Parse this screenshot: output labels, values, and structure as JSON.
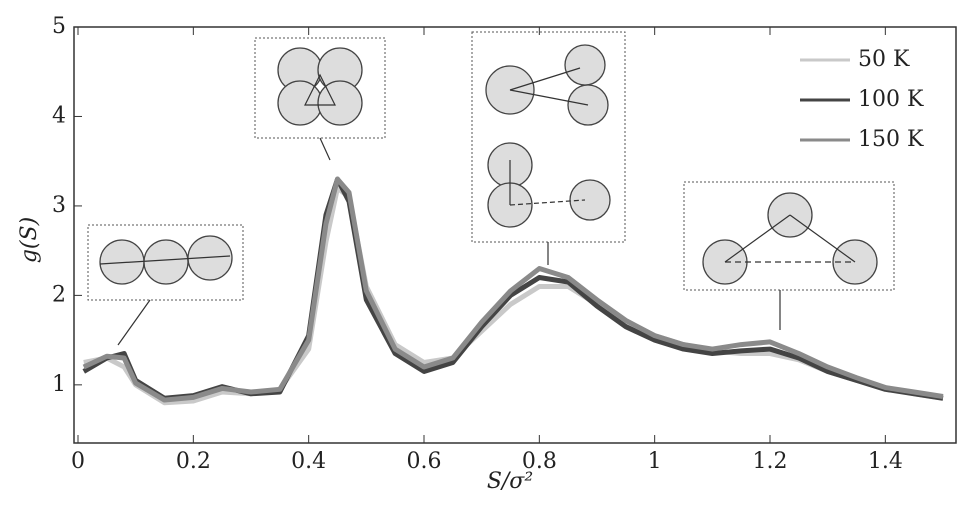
{
  "chart_data": {
    "type": "line",
    "x_label": "S/σ²",
    "y_label": "g(S)",
    "x": [
      0.01,
      0.05,
      0.08,
      0.1,
      0.15,
      0.2,
      0.25,
      0.3,
      0.35,
      0.4,
      0.43,
      0.45,
      0.47,
      0.5,
      0.55,
      0.6,
      0.65,
      0.7,
      0.75,
      0.8,
      0.85,
      0.9,
      0.95,
      1.0,
      1.05,
      1.1,
      1.15,
      1.2,
      1.25,
      1.3,
      1.35,
      1.4,
      1.45,
      1.5
    ],
    "series": [
      {
        "name": "50 K",
        "color": "#c9c9c9",
        "values": [
          1.25,
          1.3,
          1.2,
          1.0,
          0.8,
          0.82,
          0.92,
          0.9,
          0.95,
          1.4,
          2.6,
          3.2,
          3.1,
          2.1,
          1.45,
          1.25,
          1.3,
          1.6,
          1.9,
          2.1,
          2.1,
          1.9,
          1.7,
          1.55,
          1.45,
          1.38,
          1.35,
          1.35,
          1.28,
          1.15,
          1.05,
          0.97,
          0.9,
          0.85
        ]
      },
      {
        "name": "100 K",
        "color": "#444444",
        "values": [
          1.15,
          1.3,
          1.35,
          1.05,
          0.85,
          0.88,
          0.98,
          0.9,
          0.92,
          1.55,
          2.9,
          3.3,
          3.05,
          1.95,
          1.35,
          1.15,
          1.25,
          1.65,
          2.0,
          2.2,
          2.15,
          1.88,
          1.65,
          1.5,
          1.4,
          1.35,
          1.38,
          1.4,
          1.3,
          1.15,
          1.05,
          0.95,
          0.9,
          0.85
        ]
      },
      {
        "name": "150 K",
        "color": "#8a8a8a",
        "values": [
          1.2,
          1.32,
          1.3,
          1.02,
          0.83,
          0.86,
          0.96,
          0.92,
          0.95,
          1.5,
          2.8,
          3.3,
          3.15,
          2.05,
          1.4,
          1.2,
          1.3,
          1.7,
          2.05,
          2.3,
          2.2,
          1.95,
          1.72,
          1.55,
          1.45,
          1.4,
          1.45,
          1.48,
          1.35,
          1.2,
          1.08,
          0.97,
          0.92,
          0.87
        ]
      }
    ],
    "xlim": [
      0,
      1.5
    ],
    "ylim": [
      0.35,
      5
    ],
    "xticks": [
      0,
      0.2,
      0.4,
      0.6,
      0.8,
      1,
      1.2,
      1.4
    ],
    "yticks": [
      1,
      2,
      3,
      4,
      5
    ],
    "legend": "upper right"
  }
}
